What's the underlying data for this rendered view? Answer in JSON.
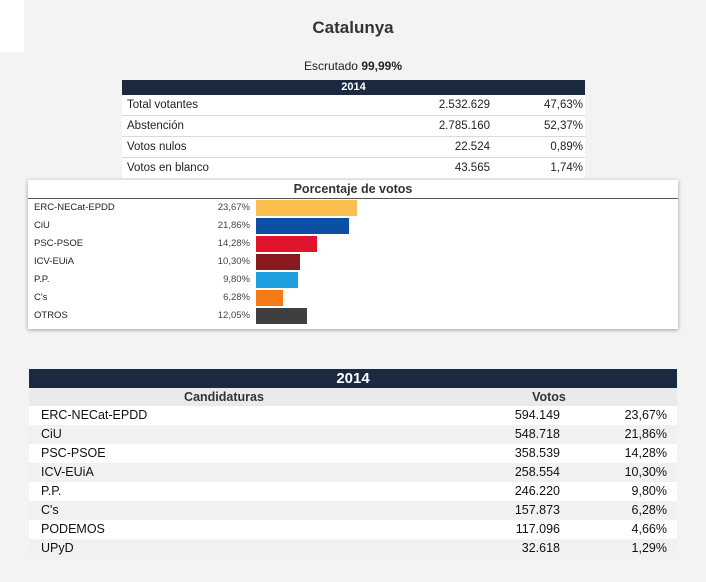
{
  "page": {
    "title": "Catalunya",
    "escrutado_label": "Escrutado",
    "escrutado_value": "99,99%"
  },
  "summary": {
    "year": "2014",
    "rows": [
      {
        "label": "Total votantes",
        "count": "2.532.629",
        "pct": "47,63%"
      },
      {
        "label": "Abstención",
        "count": "2.785.160",
        "pct": "52,37%"
      },
      {
        "label": "Votos nulos",
        "count": "22.524",
        "pct": "0,89%"
      },
      {
        "label": "Votos en blanco",
        "count": "43.565",
        "pct": "1,74%"
      }
    ]
  },
  "chart_data": {
    "type": "bar",
    "title": "Porcentaje de votos",
    "categories": [
      "ERC-NECat-EPDD",
      "CiU",
      "PSC-PSOE",
      "ICV-EUiA",
      "P.P.",
      "C's",
      "OTROS"
    ],
    "values": [
      23.67,
      21.86,
      14.28,
      10.3,
      9.8,
      6.28,
      12.05
    ],
    "value_labels": [
      "23,67%",
      "21,86%",
      "14,28%",
      "10,30%",
      "9,80%",
      "6,28%",
      "12,05%"
    ],
    "colors": [
      "#fbbf4f",
      "#0d4fa3",
      "#e0142c",
      "#8b1a1f",
      "#1ea0e0",
      "#f57a14",
      "#3f3f3f"
    ],
    "orientation": "horizontal",
    "xlim": [
      0,
      23.67
    ]
  },
  "results": {
    "year": "2014",
    "header_candidaturas": "Candidaturas",
    "header_votos": "Votos",
    "rows": [
      {
        "name": "ERC-NECat-EPDD",
        "votes": "594.149",
        "pct": "23,67%"
      },
      {
        "name": "CiU",
        "votes": "548.718",
        "pct": "21,86%"
      },
      {
        "name": "PSC-PSOE",
        "votes": "358.539",
        "pct": "14,28%"
      },
      {
        "name": "ICV-EUiA",
        "votes": "258.554",
        "pct": "10,30%"
      },
      {
        "name": "P.P.",
        "votes": "246.220",
        "pct": "9,80%"
      },
      {
        "name": "C's",
        "votes": "157.873",
        "pct": "6,28%"
      },
      {
        "name": "PODEMOS",
        "votes": "117.096",
        "pct": "4,66%"
      },
      {
        "name": "UPyD",
        "votes": "32.618",
        "pct": "1,29%"
      }
    ]
  }
}
